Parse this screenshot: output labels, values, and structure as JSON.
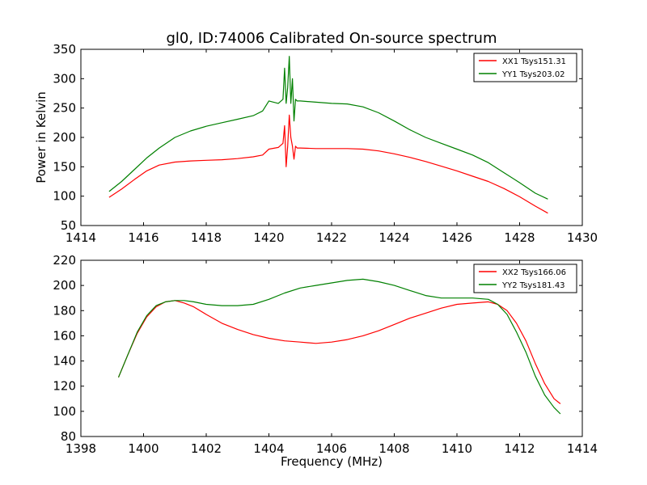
{
  "figure": {
    "title": "gl0, ID:74006 Calibrated On-source spectrum"
  },
  "chart_data": [
    {
      "type": "line",
      "ylabel": "Power in Kelvin",
      "xlabel": "",
      "xlim": [
        1414,
        1430
      ],
      "ylim": [
        50,
        350
      ],
      "xticks": [
        1414,
        1416,
        1418,
        1420,
        1422,
        1424,
        1426,
        1428,
        1430
      ],
      "yticks": [
        50,
        100,
        150,
        200,
        250,
        300,
        350
      ],
      "grid": false,
      "legend": "top-right",
      "series": [
        {
          "name": "XX1 Tsys151.31",
          "color": "#ff0000",
          "x": [
            1414.9,
            1415.3,
            1415.7,
            1416.1,
            1416.5,
            1417.0,
            1417.5,
            1418.0,
            1418.5,
            1419.0,
            1419.5,
            1419.8,
            1420.0,
            1420.3,
            1420.45,
            1420.5,
            1420.55,
            1420.6,
            1420.65,
            1420.7,
            1420.75,
            1420.8,
            1420.85,
            1420.9,
            1420.95,
            1421.0,
            1421.5,
            1422.0,
            1422.5,
            1423.0,
            1423.5,
            1424.0,
            1424.5,
            1425.0,
            1425.5,
            1426.0,
            1426.5,
            1427.0,
            1427.5,
            1428.0,
            1428.5,
            1428.9
          ],
          "values": [
            98,
            112,
            128,
            143,
            153,
            158,
            160,
            161,
            162,
            164,
            167,
            170,
            180,
            183,
            190,
            220,
            150,
            185,
            238,
            200,
            185,
            163,
            185,
            182,
            182,
            182,
            181,
            181,
            181,
            180,
            177,
            172,
            166,
            159,
            151,
            143,
            134,
            125,
            113,
            99,
            83,
            71
          ]
        },
        {
          "name": "YY1 Tsys203.02",
          "color": "#008000",
          "x": [
            1414.9,
            1415.3,
            1415.7,
            1416.1,
            1416.5,
            1417.0,
            1417.5,
            1418.0,
            1418.5,
            1419.0,
            1419.5,
            1419.8,
            1420.0,
            1420.3,
            1420.45,
            1420.5,
            1420.55,
            1420.6,
            1420.65,
            1420.7,
            1420.75,
            1420.8,
            1420.85,
            1420.9,
            1420.95,
            1421.0,
            1421.5,
            1422.0,
            1422.5,
            1423.0,
            1423.5,
            1424.0,
            1424.5,
            1425.0,
            1425.5,
            1426.0,
            1426.5,
            1427.0,
            1427.5,
            1428.0,
            1428.5,
            1428.9
          ],
          "values": [
            108,
            125,
            145,
            165,
            182,
            200,
            211,
            219,
            225,
            231,
            237,
            245,
            262,
            258,
            265,
            318,
            258,
            285,
            338,
            258,
            300,
            228,
            265,
            262,
            262,
            262,
            260,
            258,
            257,
            252,
            242,
            228,
            213,
            200,
            190,
            180,
            170,
            157,
            140,
            123,
            105,
            95
          ]
        }
      ]
    },
    {
      "type": "line",
      "ylabel": "",
      "xlabel": "Frequency (MHz)",
      "xlim": [
        1398,
        1414
      ],
      "ylim": [
        80,
        220
      ],
      "xticks": [
        1398,
        1400,
        1402,
        1404,
        1406,
        1408,
        1410,
        1412,
        1414
      ],
      "yticks": [
        80,
        100,
        120,
        140,
        160,
        180,
        200,
        220
      ],
      "grid": false,
      "legend": "top-right",
      "series": [
        {
          "name": "XX2 Tsys166.06",
          "color": "#ff0000",
          "x": [
            1399.2,
            1399.5,
            1399.8,
            1400.1,
            1400.4,
            1400.7,
            1401.0,
            1401.3,
            1401.6,
            1402.0,
            1402.5,
            1403.0,
            1403.5,
            1404.0,
            1404.5,
            1405.0,
            1405.5,
            1406.0,
            1406.5,
            1407.0,
            1407.5,
            1408.0,
            1408.5,
            1409.0,
            1409.5,
            1410.0,
            1410.5,
            1411.0,
            1411.3,
            1411.6,
            1411.9,
            1412.2,
            1412.5,
            1412.8,
            1413.1,
            1413.3
          ],
          "values": [
            127,
            145,
            162,
            175,
            183,
            187,
            188,
            186,
            183,
            177,
            170,
            165,
            161,
            158,
            156,
            155,
            154,
            155,
            157,
            160,
            164,
            169,
            174,
            178,
            182,
            185,
            186,
            187,
            185,
            180,
            170,
            156,
            138,
            122,
            110,
            106
          ]
        },
        {
          "name": "YY2 Tsys181.43",
          "color": "#008000",
          "x": [
            1399.2,
            1399.5,
            1399.8,
            1400.1,
            1400.4,
            1400.7,
            1401.0,
            1401.3,
            1401.6,
            1402.0,
            1402.5,
            1403.0,
            1403.5,
            1404.0,
            1404.5,
            1405.0,
            1405.5,
            1406.0,
            1406.5,
            1407.0,
            1407.5,
            1408.0,
            1408.5,
            1409.0,
            1409.5,
            1410.0,
            1410.5,
            1411.0,
            1411.3,
            1411.6,
            1411.9,
            1412.2,
            1412.5,
            1412.8,
            1413.1,
            1413.3
          ],
          "values": [
            127,
            145,
            163,
            176,
            184,
            187,
            188,
            188,
            187,
            185,
            184,
            184,
            185,
            189,
            194,
            198,
            200,
            202,
            204,
            205,
            203,
            200,
            196,
            192,
            190,
            190,
            190,
            189,
            185,
            177,
            163,
            147,
            128,
            113,
            103,
            98
          ]
        }
      ]
    }
  ]
}
